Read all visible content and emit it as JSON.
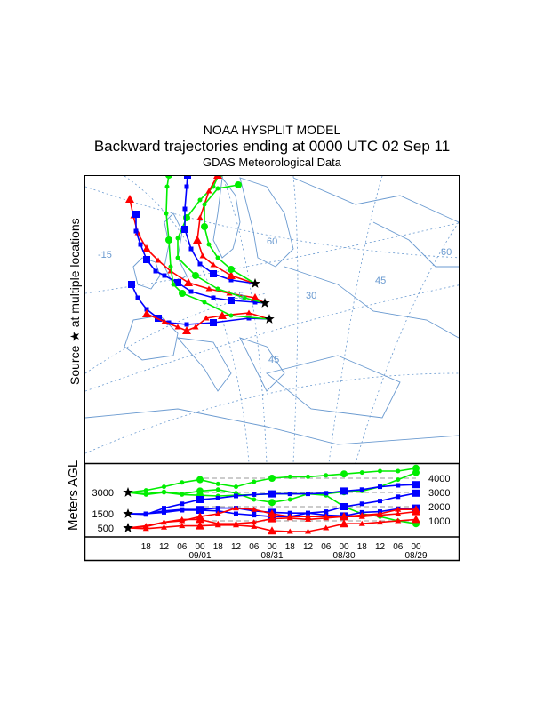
{
  "title": {
    "line1": "NOAA HYSPLIT MODEL",
    "line2": "Backward trajectories ending at 0000 UTC 02 Sep 11",
    "line3": "GDAS Meteorological Data"
  },
  "map": {
    "side_label": "Source ★ at multiple locations",
    "grid_labels": [
      "-15",
      "60",
      "45",
      "30",
      "15",
      "45",
      "60"
    ]
  },
  "colors": {
    "red": "#ff0000",
    "blue": "#0000ff",
    "green": "#00ee00",
    "map": "#6a9ad0"
  },
  "chart_data": {
    "type": "line",
    "ylabel": "Meters AGL",
    "start_heights": [
      "3000",
      "1500",
      "500"
    ],
    "yticks": [
      "4000",
      "3000",
      "2000",
      "1000"
    ],
    "xticks": [
      "18",
      "12",
      "06",
      "00",
      "18",
      "12",
      "06",
      "00",
      "18",
      "12",
      "06",
      "00",
      "18",
      "12",
      "06",
      "00"
    ],
    "date_labels": [
      "09/01",
      "08/31",
      "08/30",
      "08/29"
    ],
    "hours_back_step": 6,
    "series": [
      {
        "color": "green",
        "marker": "circle",
        "values": [
          3000,
          3150,
          3400,
          3700,
          3900,
          3600,
          3400,
          3750,
          4000,
          4100,
          4100,
          4200,
          4300,
          4400,
          4500,
          4500,
          4700
        ]
      },
      {
        "color": "green",
        "marker": "circle",
        "values": [
          3000,
          2900,
          3050,
          2900,
          3100,
          3200,
          2950,
          2500,
          2300,
          2500,
          2900,
          2800,
          2000,
          1500,
          1300,
          1000,
          800
        ]
      },
      {
        "color": "green",
        "marker": "circle",
        "values": [
          3000,
          2850,
          3000,
          2850,
          2800,
          2750,
          2800,
          2850,
          2900,
          2900,
          2900,
          2900,
          3050,
          3100,
          3400,
          3900,
          4400
        ]
      },
      {
        "color": "blue",
        "marker": "square",
        "values": [
          1500,
          1450,
          1900,
          2200,
          2500,
          2600,
          2750,
          2850,
          2900,
          2900,
          2900,
          2950,
          3100,
          3200,
          3400,
          3500,
          3550
        ]
      },
      {
        "color": "blue",
        "marker": "square",
        "values": [
          1500,
          1500,
          1600,
          1750,
          1750,
          1700,
          1500,
          1400,
          1300,
          1300,
          1550,
          1650,
          2000,
          2200,
          2400,
          2700,
          2950
        ]
      },
      {
        "color": "blue",
        "marker": "square",
        "values": [
          1500,
          1500,
          1700,
          1800,
          1800,
          1900,
          1900,
          1700,
          1600,
          1550,
          1550,
          1400,
          1350,
          1600,
          1650,
          1850,
          1900
        ]
      },
      {
        "color": "red",
        "marker": "triangle",
        "values": [
          500,
          600,
          900,
          1000,
          1300,
          1500,
          1900,
          1800,
          1500,
          1300,
          1300,
          1300,
          1300,
          1400,
          1500,
          1800,
          1800
        ]
      },
      {
        "color": "red",
        "marker": "triangle",
        "values": [
          500,
          650,
          900,
          1100,
          1100,
          800,
          800,
          900,
          1150,
          1200,
          1100,
          1200,
          1300,
          1300,
          1400,
          1500,
          1650
        ]
      },
      {
        "color": "red",
        "marker": "triangle",
        "values": [
          500,
          450,
          550,
          650,
          650,
          700,
          700,
          600,
          300,
          250,
          250,
          500,
          800,
          800,
          900,
          1000,
          1100
        ]
      }
    ]
  }
}
